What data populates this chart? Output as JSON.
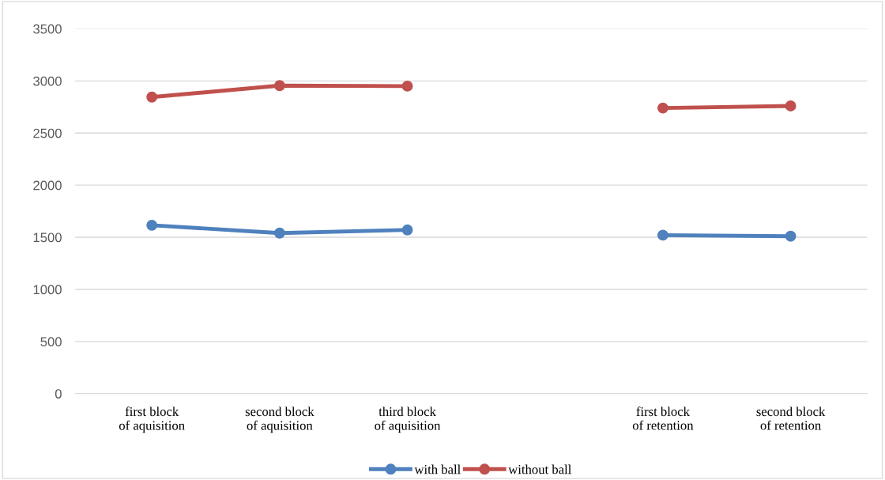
{
  "chart_data": {
    "type": "line",
    "categories": [
      "first block\nof aquisition",
      "second block\nof aquisition",
      "third block\nof aquisition",
      null,
      "first block\nof retention",
      "second block\nof retention"
    ],
    "series": [
      {
        "name": "with ball",
        "color": "#4f81bd",
        "values": [
          1615,
          1540,
          1570,
          null,
          1520,
          1510
        ]
      },
      {
        "name": "without ball",
        "color": "#c0504d",
        "values": [
          2845,
          2955,
          2950,
          null,
          2740,
          2760
        ]
      }
    ],
    "ylim": [
      0,
      3500
    ],
    "yticks": [
      0,
      500,
      1000,
      1500,
      2000,
      2500,
      3000,
      3500
    ],
    "grid": "y",
    "legend": "bottom",
    "marker": "circle",
    "line_style": "solid"
  }
}
